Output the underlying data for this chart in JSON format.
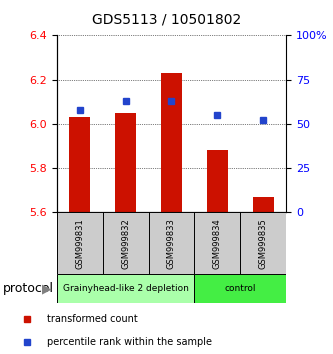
{
  "title": "GDS5113 / 10501802",
  "samples": [
    "GSM999831",
    "GSM999832",
    "GSM999833",
    "GSM999834",
    "GSM999835"
  ],
  "bar_bottoms": [
    5.6,
    5.6,
    5.6,
    5.6,
    5.6
  ],
  "bar_tops": [
    6.03,
    6.05,
    6.23,
    5.88,
    5.67
  ],
  "blue_values_pct": [
    58,
    63,
    63,
    55,
    52
  ],
  "bar_color": "#cc1100",
  "blue_color": "#2244cc",
  "ylim_left": [
    5.6,
    6.4
  ],
  "ylim_right": [
    0,
    100
  ],
  "yticks_left": [
    5.6,
    5.8,
    6.0,
    6.2,
    6.4
  ],
  "yticks_right": [
    0,
    25,
    50,
    75,
    100
  ],
  "ytick_labels_right": [
    "0",
    "25",
    "50",
    "75",
    "100%"
  ],
  "groups": [
    {
      "label": "Grainyhead-like 2 depletion",
      "indices": [
        0,
        1,
        2
      ],
      "color": "#aaffaa"
    },
    {
      "label": "control",
      "indices": [
        3,
        4
      ],
      "color": "#44ee44"
    }
  ],
  "protocol_label": "protocol",
  "legend_items": [
    {
      "label": "transformed count",
      "color": "#cc1100"
    },
    {
      "label": "percentile rank within the sample",
      "color": "#2244cc"
    }
  ],
  "bar_width": 0.45,
  "bg_color": "#ffffff",
  "plot_bg": "#ffffff",
  "sample_bg": "#cccccc",
  "title_fontsize": 10,
  "tick_fontsize": 8,
  "sample_fontsize": 6,
  "group_fontsize": 6.5,
  "legend_fontsize": 7,
  "protocol_fontsize": 9
}
